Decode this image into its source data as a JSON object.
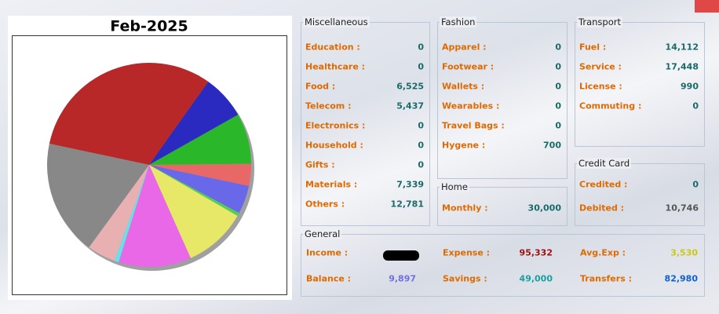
{
  "chart_data": {
    "type": "pie",
    "title": "Feb-2025",
    "values": [
      31.5,
      7,
      8,
      3.5,
      4.5,
      0.5,
      10,
      11.5,
      0.7,
      4.5,
      18.3
    ],
    "colors": [
      "#b82828",
      "#2a2ac0",
      "#2ab82a",
      "#e86868",
      "#6868e8",
      "#50d050",
      "#e8e868",
      "#e868e8",
      "#68e0e8",
      "#e8b0b0",
      "#888888"
    ]
  },
  "panels": [
    {
      "title": "Miscellaneous",
      "rows": [
        {
          "label": "Education :",
          "value": "0"
        },
        {
          "label": "Healthcare :",
          "value": "0"
        },
        {
          "label": "Food :",
          "value": "6,525"
        },
        {
          "label": "Telecom :",
          "value": "5,437"
        },
        {
          "label": "Electronics :",
          "value": "0"
        },
        {
          "label": "Household :",
          "value": "0"
        },
        {
          "label": "Gifts :",
          "value": "0"
        },
        {
          "label": "Materials :",
          "value": "7,339"
        },
        {
          "label": "Others :",
          "value": "12,781"
        }
      ]
    },
    {
      "title": "Fashion",
      "rows": [
        {
          "label": "Apparel :",
          "value": "0"
        },
        {
          "label": "Footwear :",
          "value": "0"
        },
        {
          "label": "Wallets :",
          "value": "0"
        },
        {
          "label": "Wearables :",
          "value": "0"
        },
        {
          "label": "Travel Bags :",
          "value": "0"
        },
        {
          "label": "Hygene :",
          "value": "700"
        }
      ]
    },
    {
      "title": "Transport",
      "rows": [
        {
          "label": "Fuel :",
          "value": "14,112"
        },
        {
          "label": "Service :",
          "value": "17,448"
        },
        {
          "label": "License :",
          "value": "990"
        },
        {
          "label": "Commuting :",
          "value": "0"
        }
      ]
    },
    {
      "title": "Home",
      "rows": [
        {
          "label": "Monthly :",
          "value": "30,000"
        }
      ]
    },
    {
      "title": "Credit Card",
      "rows": [
        {
          "label": "Credited :",
          "value": "0"
        },
        {
          "label": "Debited :",
          "value": "10,746"
        }
      ]
    }
  ],
  "general": {
    "title": "General",
    "rows": [
      {
        "label": "Income :"
      },
      {
        "label": "Expense :",
        "value": "95,332",
        "color": "#a01010"
      },
      {
        "label": "Avg.Exp :",
        "value": "3,530",
        "color": "#c8c818"
      },
      {
        "label": "Balance :",
        "value": "9,897",
        "color": "#7070e0"
      },
      {
        "label": "Savings :",
        "value": "49,000",
        "color": "#18a0a0"
      },
      {
        "label": "Transfers :",
        "value": "82,980",
        "color": "#1060d0"
      }
    ]
  }
}
